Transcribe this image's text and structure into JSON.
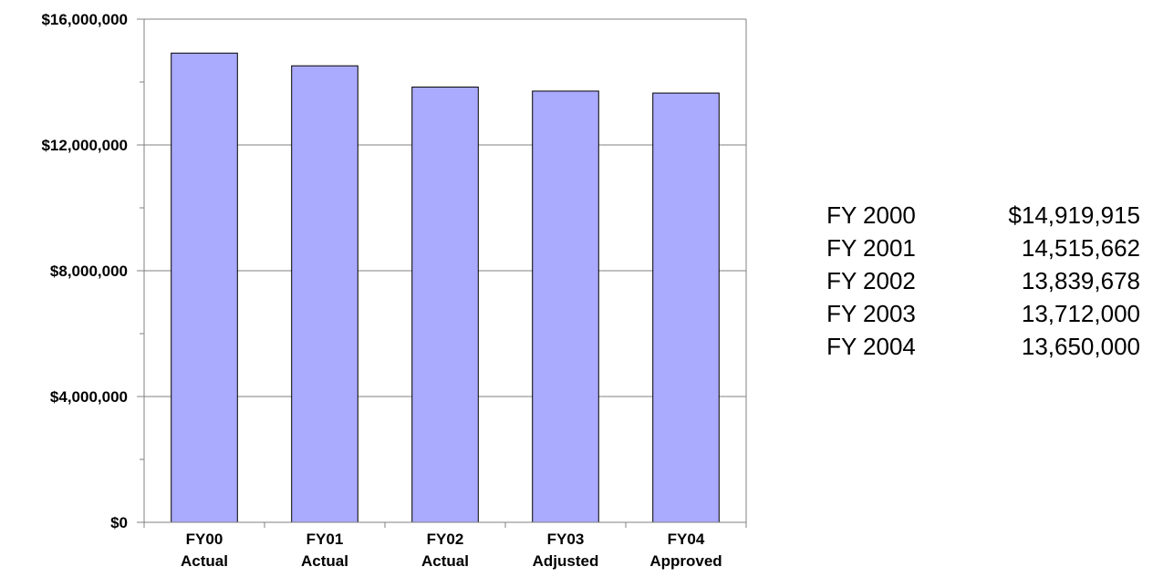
{
  "chart_data": {
    "type": "bar",
    "categories": [
      [
        "FY00",
        "Actual"
      ],
      [
        "FY01",
        "Actual"
      ],
      [
        "FY02",
        "Actual"
      ],
      [
        "FY03",
        "Adjusted"
      ],
      [
        "FY04",
        "Approved"
      ]
    ],
    "values": [
      14919915,
      14515662,
      13839678,
      13712000,
      13650000
    ],
    "title": "",
    "xlabel": "",
    "ylabel": "",
    "ylim": [
      0,
      16000000
    ],
    "yticks": [
      0,
      4000000,
      8000000,
      12000000,
      16000000
    ],
    "ytick_labels": [
      "$0",
      "$4,000,000",
      "$8,000,000",
      "$12,000,000",
      "$16,000,000"
    ],
    "minor_ytick_step": 2000000,
    "grid": true,
    "legend": "none",
    "bar_color": "#aaaaff",
    "bar_edge_color": "#000000"
  },
  "summary_table": [
    {
      "year": "FY 2000",
      "amount": "$14,919,915"
    },
    {
      "year": "FY 2001",
      "amount": "14,515,662"
    },
    {
      "year": "FY 2002",
      "amount": "13,839,678"
    },
    {
      "year": "FY 2003",
      "amount": "13,712,000"
    },
    {
      "year": "FY 2004",
      "amount": "13,650,000"
    }
  ]
}
